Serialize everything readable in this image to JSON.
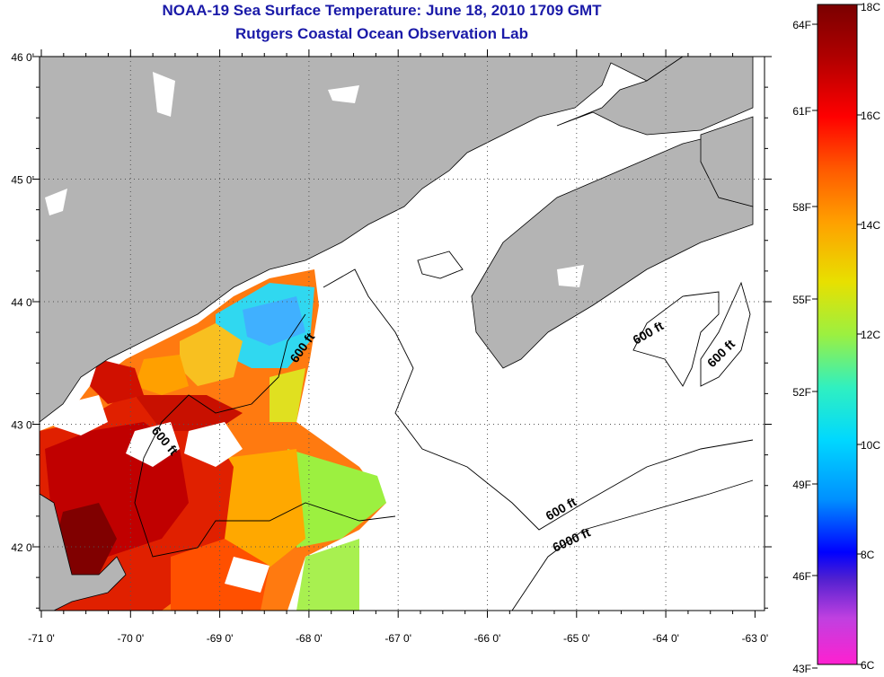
{
  "title": "NOAA-19 Sea Surface Temperature:  June 18, 2010 1709 GMT",
  "subtitle": "Rutgers Coastal Ocean Observation Lab",
  "map": {
    "lat_ticks": [
      {
        "value": 46,
        "label": "46 0'"
      },
      {
        "value": 45,
        "label": "45 0'"
      },
      {
        "value": 44,
        "label": "44 0'"
      },
      {
        "value": 43,
        "label": "43 0'"
      },
      {
        "value": 42,
        "label": "42 0'"
      }
    ],
    "lon_ticks": [
      {
        "value": -71,
        "label": "-71 0'"
      },
      {
        "value": -70,
        "label": "-70 0'"
      },
      {
        "value": -69,
        "label": "-69 0'"
      },
      {
        "value": -68,
        "label": "-68 0'"
      },
      {
        "value": -67,
        "label": "-67 0'"
      },
      {
        "value": -66,
        "label": "-66 0'"
      },
      {
        "value": -65,
        "label": "-65 0'"
      },
      {
        "value": -64,
        "label": "-64 0'"
      },
      {
        "value": -63,
        "label": "-63 0'"
      }
    ],
    "contour_labels": [
      "600 ft",
      "600 ft",
      "600 ft",
      "600 ft",
      "600 ft",
      "6000 ft"
    ],
    "colors": {
      "land": "#b4b4b4",
      "cloud": "#ffffff",
      "contour": "#000000",
      "gridline": "#555555"
    }
  },
  "colorbar": {
    "fahrenheit_labels": [
      "64F",
      "61F",
      "58F",
      "55F",
      "52F",
      "49F",
      "46F",
      "43F"
    ],
    "celsius_labels": [
      "18C",
      "16C",
      "14C",
      "12C",
      "10C",
      "8C",
      "6C"
    ],
    "range_c": [
      6,
      18
    ]
  }
}
